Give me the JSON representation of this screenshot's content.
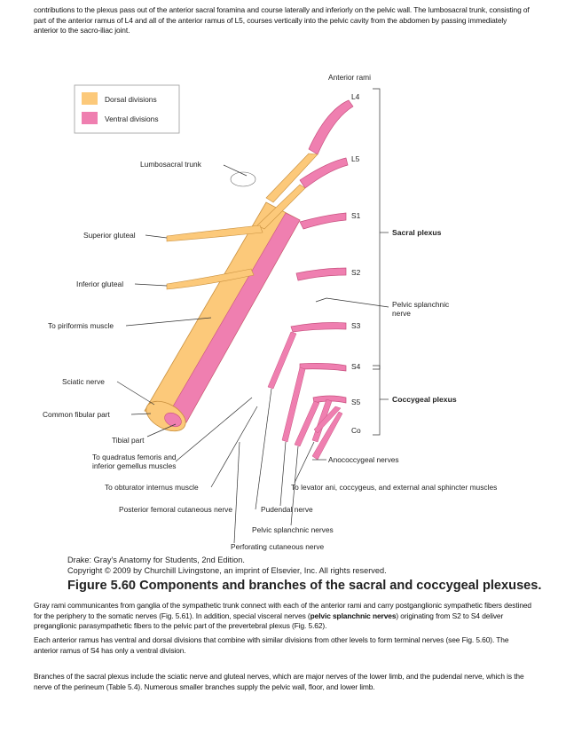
{
  "paragraph1": "contributions to the plexus pass out of the anterior sacral foramina and course laterally and inferiorly on the pelvic wall. The lumbosacral trunk, consisting of part of the anterior ramus of L4 and all of the anterior ramus of L5, courses vertically into the pelvic cavity from the abdomen by passing immediately anterior to the sacro-iliac joint.",
  "figure": {
    "legend": {
      "dorsal": "Dorsal divisions",
      "ventral": "Ventral divisions",
      "dorsal_color": "#fcc97a",
      "ventral_color": "#ef7fb0"
    },
    "labels": {
      "anterior_rami": "Anterior rami",
      "l4": "L4",
      "l5": "L5",
      "s1": "S1",
      "s2": "S2",
      "s3": "S3",
      "s4": "S4",
      "s5": "S5",
      "co": "Co",
      "sacral_plexus": "Sacral plexus",
      "pelvic_splanchnic_1": "Pelvic splanchnic",
      "pelvic_splanchnic_2": "nerve",
      "coccygeal_plexus": "Coccygeal plexus",
      "lumbosacral_trunk": "Lumbosacral trunk",
      "superior_gluteal": "Superior gluteal",
      "inferior_gluteal": "Inferior gluteal",
      "to_piriformis": "To piriformis muscle",
      "sciatic_nerve": "Sciatic nerve",
      "common_fibular": "Common fibular part",
      "tibial_part": "Tibial part",
      "quadratus_1": "To quadratus femoris and",
      "quadratus_2": "inferior gemellus muscles",
      "obturator": "To obturator internus muscle",
      "posterior_femoral": "Posterior femoral cutaneous nerve",
      "pudendal": "Pudendal nerve",
      "pelvic_splanchnic_nerves": "Pelvic splanchnic nerves",
      "perforating": "Perforating cutaneous nerve",
      "anococcygeal": "Anococcygeal nerves",
      "levator": "To levator ani, coccygeus, and external anal sphincter muscles"
    },
    "credit_line1": "Drake: Gray's Anatomy for Students, 2nd Edition.",
    "credit_line2": "Copyright © 2009 by Churchill Livingstone, an imprint of Elsevier, Inc. All rights reserved.",
    "caption": "Figure 5.60 Components and branches of the sacral and coccygeal plexuses."
  },
  "paragraph2": {
    "part1": "Gray rami communicantes from ganglia of the sympathetic trunk connect with each of the anterior rami and carry postganglionic sympathetic fibers destined for the periphery to the somatic nerves (Fig. 5.61). In addition, special visceral nerves (",
    "bold": "pelvic splanchnic nerves",
    "part2": ") originating from S2 to S4 deliver preganglionic parasympathetic fibers to the pelvic part of the prevertebral plexus (Fig. 5.62)."
  },
  "paragraph3": "Each anterior ramus has ventral and dorsal divisions that combine with similar divisions from other levels to form terminal nerves (see Fig. 5.60). The anterior ramus of S4 has only a ventral division.",
  "paragraph4": "Branches of the sacral plexus include the sciatic nerve and gluteal nerves, which are major nerves of the lower limb, and the pudendal nerve, which is the nerve of the perineum (Table 5.4). Numerous smaller branches supply the pelvic wall, floor, and lower limb."
}
